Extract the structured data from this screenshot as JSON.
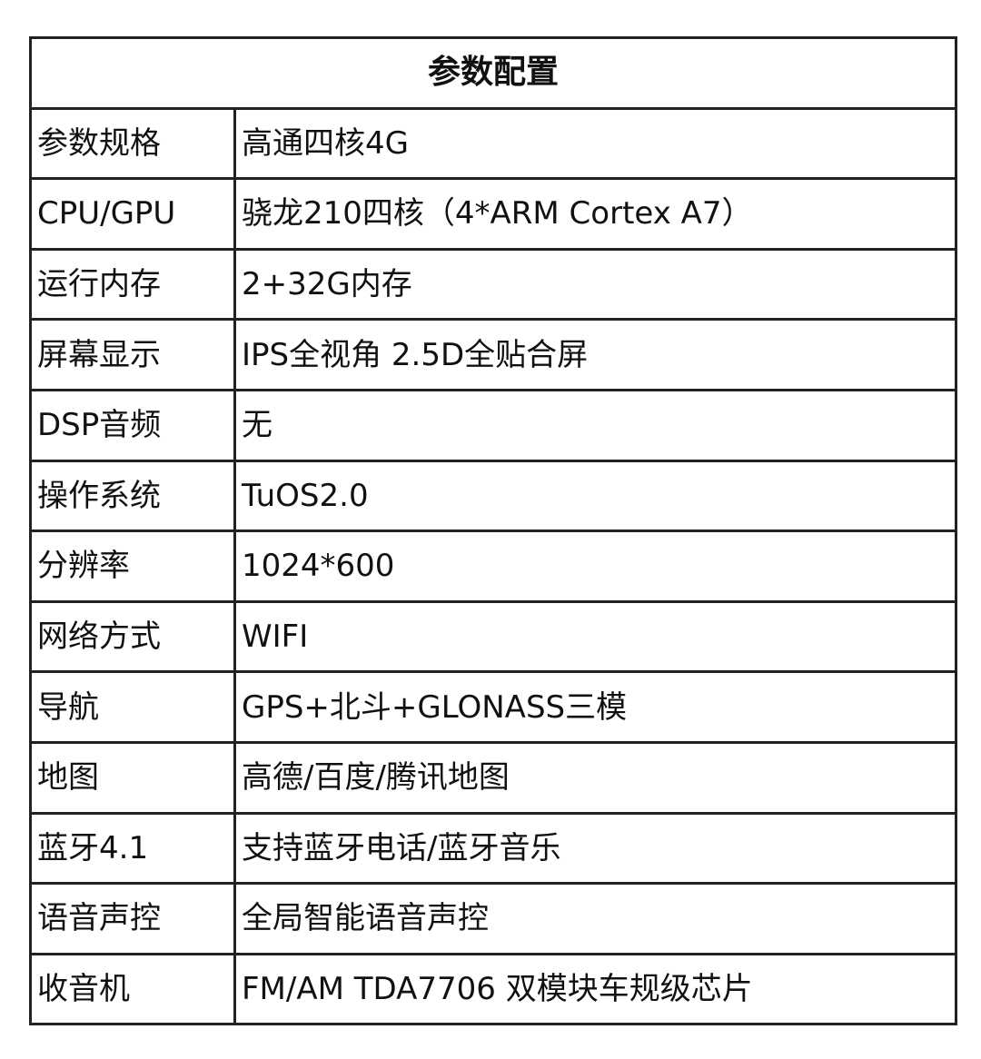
{
  "table": {
    "title": "参数配置",
    "rows": [
      {
        "label": "参数规格",
        "value": "高通四核4G"
      },
      {
        "label": "CPU/GPU",
        "value": "骁龙210四核（4*ARM Cortex A7）"
      },
      {
        "label": "运行内存",
        "value": "2+32G内存"
      },
      {
        "label": "屏幕显示",
        "value": "IPS全视角 2.5D全贴合屏"
      },
      {
        "label": "DSP音频",
        "value": "无"
      },
      {
        "label": "操作系统",
        "value": "TuOS2.0"
      },
      {
        "label": "分辨率",
        "value": "1024*600"
      },
      {
        "label": "网络方式",
        "value": "WIFI"
      },
      {
        "label": "导航",
        "value": "GPS+北斗+GLONASS三模"
      },
      {
        "label": "地图",
        "value": "高德/百度/腾讯地图"
      },
      {
        "label": "蓝牙4.1",
        "value": "支持蓝牙电话/蓝牙音乐"
      },
      {
        "label": "语音声控",
        "value": "全局智能语音声控"
      },
      {
        "label": "收音机",
        "value": "FM/AM TDA7706 双模块车规级芯片"
      }
    ]
  }
}
